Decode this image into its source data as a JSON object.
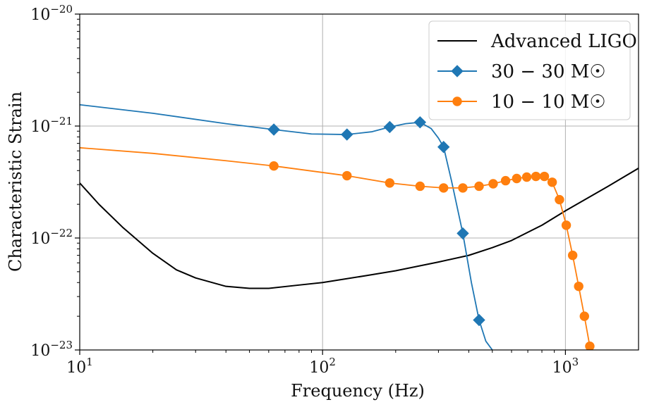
{
  "chart_data": {
    "type": "line",
    "xlabel": "Frequency (Hz)",
    "ylabel": "Characteristic Strain",
    "xscale": "log",
    "yscale": "log",
    "xlim": [
      10,
      2000
    ],
    "ylim": [
      1e-23,
      1e-20
    ],
    "grid": true,
    "legend_position": "top-right",
    "x_ticks": [
      {
        "value": 10,
        "base": "10",
        "exp": "1"
      },
      {
        "value": 100,
        "base": "10",
        "exp": "2"
      },
      {
        "value": 1000,
        "base": "10",
        "exp": "3"
      }
    ],
    "y_ticks": [
      {
        "value": 1e-23,
        "base": "10",
        "exp": "−23"
      },
      {
        "value": 1e-22,
        "base": "10",
        "exp": "−22"
      },
      {
        "value": 1e-21,
        "base": "10",
        "exp": "−21"
      },
      {
        "value": 1e-20,
        "base": "10",
        "exp": "−20"
      }
    ],
    "series": [
      {
        "name": "Advanced LIGO",
        "color": "#000000",
        "marker": "none",
        "x": [
          10,
          12,
          15,
          20,
          25,
          30,
          40,
          50,
          60,
          80,
          100,
          150,
          200,
          300,
          400,
          500,
          600,
          800,
          1000,
          1500,
          2000
        ],
        "y": [
          3.1e-22,
          2e-22,
          1.25e-22,
          7.3e-23,
          5.2e-23,
          4.4e-23,
          3.7e-23,
          3.55e-23,
          3.55e-23,
          3.8e-23,
          4e-23,
          4.6e-23,
          5.1e-23,
          6.1e-23,
          7e-23,
          8.2e-23,
          9.5e-23,
          1.3e-22,
          1.75e-22,
          2.9e-22,
          4.2e-22
        ]
      },
      {
        "name": "30 − 30 M☉",
        "color": "#1f77b4",
        "marker": "diamond",
        "x": [
          10,
          20,
          40,
          63,
          90,
          126,
          160,
          189,
          220,
          252,
          280,
          300,
          315,
          340,
          378,
          410,
          441,
          470,
          500
        ],
        "y": [
          1.55e-21,
          1.3e-21,
          1.05e-21,
          9.3e-22,
          8.5e-22,
          8.4e-22,
          8.9e-22,
          9.8e-22,
          1.05e-21,
          1.08e-21,
          9.5e-22,
          7.8e-22,
          6.5e-22,
          3.2e-22,
          1.1e-22,
          4e-23,
          1.85e-23,
          1.2e-23,
          1e-23
        ],
        "marker_x": [
          63,
          126,
          189,
          252,
          315,
          378,
          441
        ],
        "marker_y": [
          9.3e-22,
          8.4e-22,
          9.8e-22,
          1.08e-21,
          6.5e-22,
          1.1e-22,
          1.85e-23
        ]
      },
      {
        "name": "10 − 10 M☉",
        "color": "#ff7f0e",
        "marker": "circle",
        "x": [
          10,
          20,
          40,
          63,
          126,
          189,
          252,
          315,
          378,
          441,
          504,
          567,
          630,
          693,
          756,
          819,
          882,
          945,
          1008,
          1071,
          1134,
          1197,
          1260,
          1290
        ],
        "y": [
          6.4e-22,
          5.7e-22,
          4.9e-22,
          4.4e-22,
          3.6e-22,
          3.1e-22,
          2.9e-22,
          2.8e-22,
          2.8e-22,
          2.9e-22,
          3.05e-22,
          3.25e-22,
          3.4e-22,
          3.5e-22,
          3.55e-22,
          3.55e-22,
          3.15e-22,
          2.2e-22,
          1.3e-22,
          7e-23,
          3.7e-23,
          2e-23,
          1.08e-23,
          1e-23
        ],
        "marker_x": [
          63,
          126,
          189,
          252,
          315,
          378,
          441,
          504,
          567,
          630,
          693,
          756,
          819,
          882,
          945,
          1008,
          1071,
          1134,
          1197,
          1260
        ],
        "marker_y": [
          4.4e-22,
          3.6e-22,
          3.1e-22,
          2.9e-22,
          2.8e-22,
          2.8e-22,
          2.9e-22,
          3.05e-22,
          3.25e-22,
          3.4e-22,
          3.5e-22,
          3.55e-22,
          3.55e-22,
          3.15e-22,
          2.2e-22,
          1.3e-22,
          7e-23,
          3.7e-23,
          2e-23,
          1.08e-23
        ]
      }
    ]
  }
}
